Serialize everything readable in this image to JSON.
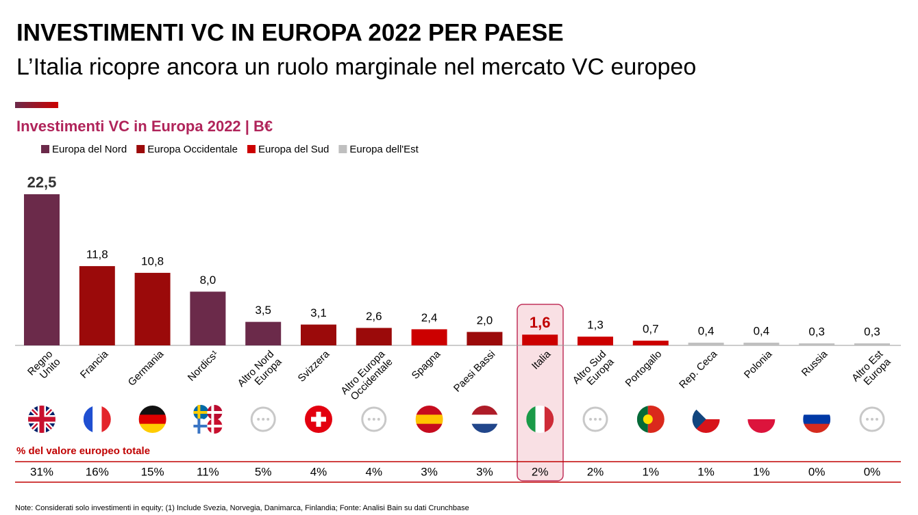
{
  "header": {
    "title": "INVESTIMENTI VC IN EUROPA 2022 PER PAESE",
    "subtitle": "L’Italia ricopre ancora un ruolo marginale nel mercato VC europeo"
  },
  "chart_data": {
    "type": "bar",
    "title": "Investimenti VC in Europa 2022 | B€",
    "legend": [
      {
        "name": "Europa del Nord",
        "color": "#6b2a4a"
      },
      {
        "name": "Europa Occidentale",
        "color": "#9b0a0a"
      },
      {
        "name": "Europa del Sud",
        "color": "#cc0000"
      },
      {
        "name": "Europa dell'Est",
        "color": "#bfbfbf"
      }
    ],
    "categories": [
      "Regno\nUnito",
      "Francia",
      "Germania",
      "Nordics¹",
      "Altro Nord\nEuropa",
      "Svizzera",
      "Altro Europa\nOccidentale",
      "Spagna",
      "Paesi Bassi",
      "Italia",
      "Altro Sud\nEuropa",
      "Portogallo",
      "Rep. Ceca",
      "Polonia",
      "Russia",
      "Altro Est\nEuropa"
    ],
    "values": [
      22.5,
      11.8,
      10.8,
      8.0,
      3.5,
      3.1,
      2.6,
      2.4,
      2.0,
      1.6,
      1.3,
      0.7,
      0.4,
      0.4,
      0.3,
      0.3
    ],
    "value_labels": [
      "22,5",
      "11,8",
      "10,8",
      "8,0",
      "3,5",
      "3,1",
      "2,6",
      "2,4",
      "2,0",
      "1,6",
      "1,3",
      "0,7",
      "0,4",
      "0,4",
      "0,3",
      "0,3"
    ],
    "colors": [
      "#6b2a4a",
      "#9b0a0a",
      "#9b0a0a",
      "#6b2a4a",
      "#6b2a4a",
      "#9b0a0a",
      "#9b0a0a",
      "#cc0000",
      "#9b0a0a",
      "#cc0000",
      "#cc0000",
      "#cc0000",
      "#bfbfbf",
      "#bfbfbf",
      "#bfbfbf",
      "#bfbfbf"
    ],
    "shares": {
      "title": "% del valore europeo totale",
      "values": [
        31,
        16,
        15,
        11,
        5,
        4,
        4,
        3,
        3,
        2,
        2,
        1,
        1,
        1,
        0,
        0
      ],
      "value_labels": [
        "31%",
        "16%",
        "15%",
        "11%",
        "5%",
        "4%",
        "4%",
        "3%",
        "3%",
        "2%",
        "2%",
        "1%",
        "1%",
        "1%",
        "0%",
        "0%"
      ]
    }
  },
  "footnote": "Note: Considerati solo investimenti in equity; (1) Include Svezia, Norvegia, Danimarca, Finlandia; Fonte: Analisi Bain su dati Crunchbase"
}
